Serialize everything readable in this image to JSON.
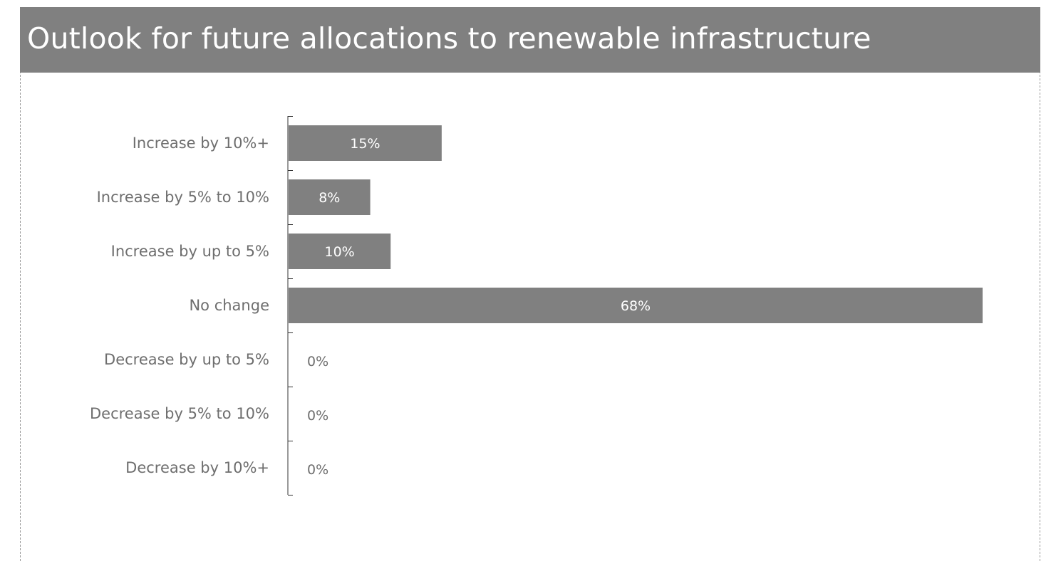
{
  "title": "Outlook for future allocations to renewable infrastructure",
  "colors": {
    "bar": "#808080",
    "header": "#808080",
    "label": "#6e6e6e",
    "axis": "#333333"
  },
  "chart_data": {
    "type": "bar",
    "orientation": "horizontal",
    "title": "Outlook for future allocations to renewable infrastructure",
    "xlabel": "",
    "ylabel": "",
    "xlim": [
      0,
      68
    ],
    "grid": false,
    "legend": "none",
    "categories": [
      "Increase by 10%+",
      "Increase by 5% to 10%",
      "Increase by up to 5%",
      "No change",
      "Decrease by up to 5%",
      "Decrease by 5% to 10%",
      "Decrease by 10%+"
    ],
    "values": [
      15,
      8,
      10,
      68,
      0,
      0,
      0
    ],
    "value_labels": [
      "15%",
      "8%",
      "10%",
      "68%",
      "0%",
      "0%",
      "0%"
    ]
  }
}
